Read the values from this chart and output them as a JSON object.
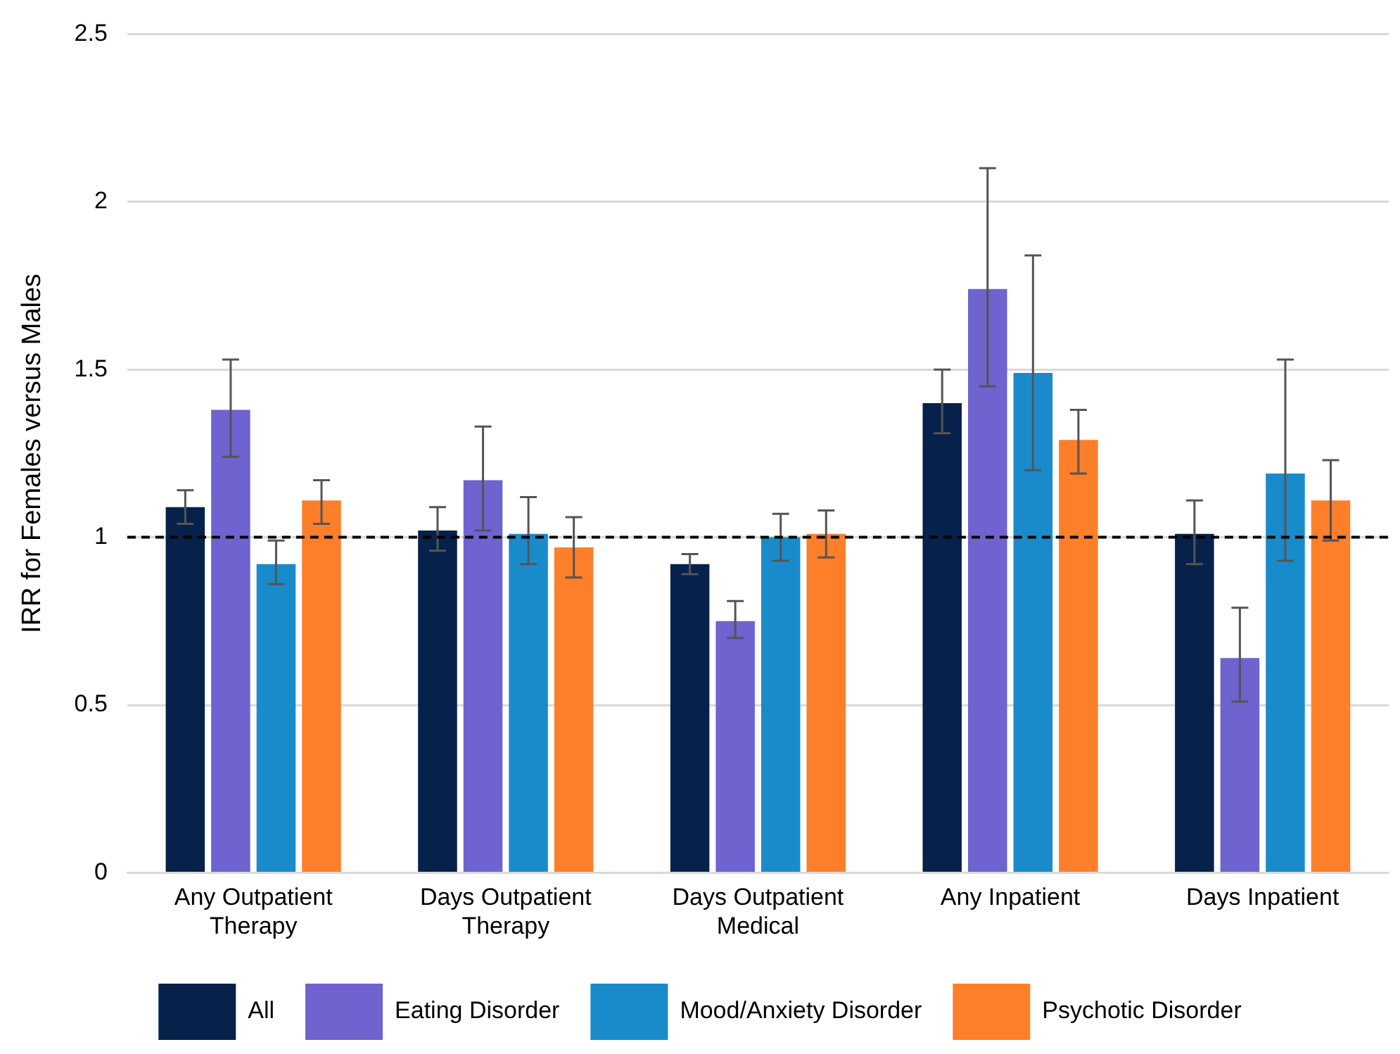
{
  "chart_data": {
    "type": "bar",
    "ylabel": "IRR for Females versus Males",
    "categories": [
      "Any Outpatient Therapy",
      "Days Outpatient Therapy",
      "Days Outpatient Medical",
      "Any Inpatient",
      "Days Inpatient"
    ],
    "series": [
      {
        "name": "All",
        "color": "#06214a",
        "values": [
          1.09,
          1.02,
          0.92,
          1.4,
          1.01
        ],
        "errors": [
          [
            1.04,
            1.14
          ],
          [
            0.96,
            1.09
          ],
          [
            0.89,
            0.95
          ],
          [
            1.31,
            1.5
          ],
          [
            0.92,
            1.11
          ]
        ]
      },
      {
        "name": "Eating Disorder",
        "color": "#6e63cf",
        "values": [
          1.38,
          1.17,
          0.75,
          1.74,
          0.64
        ],
        "errors": [
          [
            1.24,
            1.53
          ],
          [
            1.02,
            1.33
          ],
          [
            0.7,
            0.81
          ],
          [
            1.45,
            2.1
          ],
          [
            0.51,
            0.79
          ]
        ]
      },
      {
        "name": "Mood/Anxiety Disorder",
        "color": "#198bca",
        "values": [
          0.92,
          1.01,
          1.0,
          1.49,
          1.19
        ],
        "errors": [
          [
            0.86,
            0.99
          ],
          [
            0.92,
            1.12
          ],
          [
            0.93,
            1.07
          ],
          [
            1.2,
            1.84
          ],
          [
            0.93,
            1.53
          ]
        ]
      },
      {
        "name": "Psychotic Disorder",
        "color": "#fd7f29",
        "values": [
          1.11,
          0.97,
          1.01,
          1.29,
          1.11
        ],
        "errors": [
          [
            1.04,
            1.17
          ],
          [
            0.88,
            1.06
          ],
          [
            0.94,
            1.08
          ],
          [
            1.19,
            1.38
          ],
          [
            0.99,
            1.23
          ]
        ]
      }
    ],
    "ylim": [
      0,
      2.5
    ],
    "yticks": [
      0,
      0.5,
      1,
      1.5,
      2,
      2.5
    ],
    "grid": "y",
    "legend": "bottom",
    "ref_lines": [
      {
        "axis": "y",
        "value": 1,
        "color": "#000000",
        "line_style": "dashed"
      }
    ]
  }
}
